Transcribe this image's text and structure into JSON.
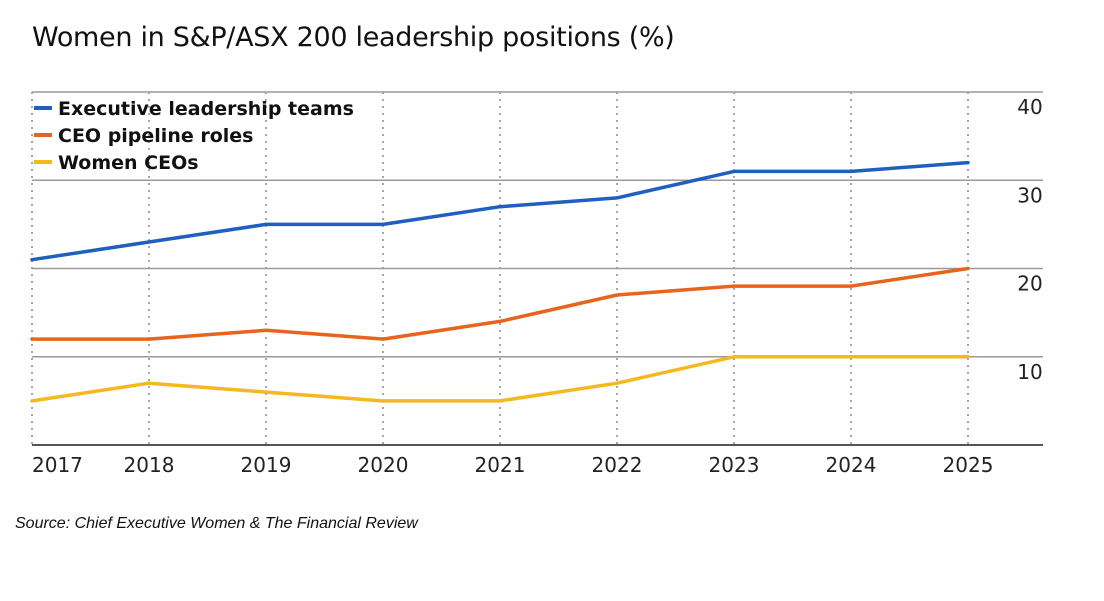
{
  "chart_data": {
    "type": "line",
    "title": "Women in S&P/ASX 200 leadership positions (%)",
    "x": [
      "2017",
      "2018",
      "2019",
      "2020",
      "2021",
      "2022",
      "2023",
      "2024",
      "2025"
    ],
    "series": [
      {
        "name": "Executive leadership teams",
        "color": "#1f5fbf",
        "values": [
          21,
          23,
          25,
          25,
          27,
          28,
          31,
          31,
          32
        ]
      },
      {
        "name": "CEO pipeline roles",
        "color": "#e8641e",
        "values": [
          12,
          12,
          13,
          12,
          14,
          17,
          18,
          18,
          20
        ]
      },
      {
        "name": "Women CEOs",
        "color": "#f5b820",
        "values": [
          5,
          7,
          6,
          5,
          5,
          7,
          10,
          10,
          10
        ]
      }
    ],
    "yticks": [
      "10",
      "20",
      "30",
      "40"
    ],
    "ylim": [
      0,
      40
    ],
    "xlabel": "",
    "ylabel": "",
    "legend_position": "top-left",
    "grid": true
  },
  "source": "Source: Chief Executive Women & The Financial Review"
}
